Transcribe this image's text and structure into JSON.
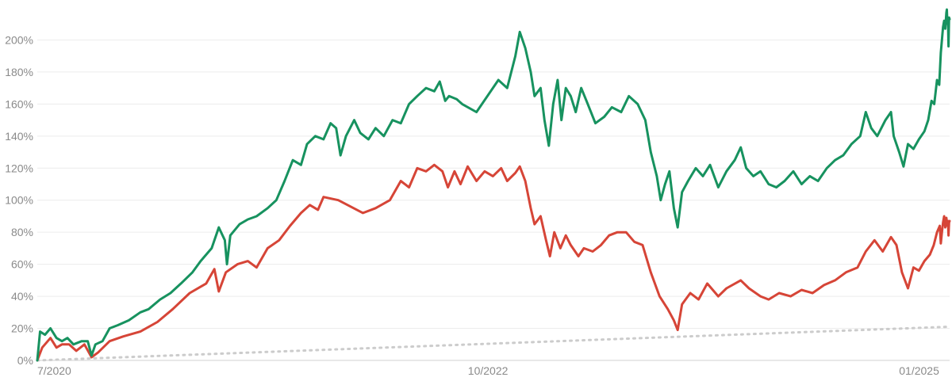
{
  "chart_data": {
    "type": "line",
    "title": "",
    "xlabel": "",
    "ylabel": "",
    "x_range": [
      "2020-07-01",
      "2025-01-20"
    ],
    "ylim": [
      0,
      220
    ],
    "grid": true,
    "y_ticks": [
      0,
      20,
      40,
      60,
      80,
      100,
      120,
      140,
      160,
      180,
      200
    ],
    "y_tick_labels": [
      "0%",
      "20%",
      "40%",
      "60%",
      "80%",
      "100%",
      "120%",
      "140%",
      "160%",
      "180%",
      "200%"
    ],
    "x_ticks": [
      {
        "date": "2020-07-01",
        "label": "7/2020"
      },
      {
        "date": "2022-10-01",
        "label": "10/2022"
      },
      {
        "date": "2025-01-01",
        "label": "01/2025"
      }
    ],
    "series": [
      {
        "color": "#17925f",
        "style": "solid",
        "points": [
          [
            "2020-07-01",
            0
          ],
          [
            "2020-07-06",
            18
          ],
          [
            "2020-07-15",
            16
          ],
          [
            "2020-07-25",
            20
          ],
          [
            "2020-08-05",
            14
          ],
          [
            "2020-08-15",
            12
          ],
          [
            "2020-08-25",
            14
          ],
          [
            "2020-09-05",
            10
          ],
          [
            "2020-09-20",
            12
          ],
          [
            "2020-10-01",
            12
          ],
          [
            "2020-10-08",
            3
          ],
          [
            "2020-10-15",
            10
          ],
          [
            "2020-10-28",
            12
          ],
          [
            "2020-11-10",
            20
          ],
          [
            "2020-11-25",
            22
          ],
          [
            "2020-12-15",
            25
          ],
          [
            "2021-01-05",
            30
          ],
          [
            "2021-01-20",
            32
          ],
          [
            "2021-02-10",
            38
          ],
          [
            "2021-03-01",
            42
          ],
          [
            "2021-03-20",
            48
          ],
          [
            "2021-04-10",
            55
          ],
          [
            "2021-04-25",
            62
          ],
          [
            "2021-05-15",
            70
          ],
          [
            "2021-05-28",
            83
          ],
          [
            "2021-06-08",
            75
          ],
          [
            "2021-06-12",
            60
          ],
          [
            "2021-06-18",
            78
          ],
          [
            "2021-07-05",
            85
          ],
          [
            "2021-07-20",
            88
          ],
          [
            "2021-08-05",
            90
          ],
          [
            "2021-08-25",
            95
          ],
          [
            "2021-09-10",
            100
          ],
          [
            "2021-09-25",
            112
          ],
          [
            "2021-10-10",
            125
          ],
          [
            "2021-10-25",
            122
          ],
          [
            "2021-11-05",
            135
          ],
          [
            "2021-11-20",
            140
          ],
          [
            "2021-12-05",
            138
          ],
          [
            "2021-12-18",
            148
          ],
          [
            "2021-12-28",
            145
          ],
          [
            "2022-01-05",
            128
          ],
          [
            "2022-01-15",
            140
          ],
          [
            "2022-01-30",
            150
          ],
          [
            "2022-02-10",
            142
          ],
          [
            "2022-02-25",
            138
          ],
          [
            "2022-03-10",
            145
          ],
          [
            "2022-03-25",
            140
          ],
          [
            "2022-04-10",
            150
          ],
          [
            "2022-04-25",
            148
          ],
          [
            "2022-05-10",
            160
          ],
          [
            "2022-05-25",
            165
          ],
          [
            "2022-06-10",
            170
          ],
          [
            "2022-06-25",
            168
          ],
          [
            "2022-07-05",
            174
          ],
          [
            "2022-07-15",
            162
          ],
          [
            "2022-07-22",
            165
          ],
          [
            "2022-08-05",
            163
          ],
          [
            "2022-08-15",
            160
          ],
          [
            "2022-09-10",
            155
          ],
          [
            "2022-10-20",
            175
          ],
          [
            "2022-11-05",
            170
          ],
          [
            "2022-11-20",
            190
          ],
          [
            "2022-11-28",
            205
          ],
          [
            "2022-12-08",
            195
          ],
          [
            "2022-12-18",
            180
          ],
          [
            "2022-12-25",
            165
          ],
          [
            "2023-01-05",
            170
          ],
          [
            "2023-01-12",
            150
          ],
          [
            "2023-01-20",
            134
          ],
          [
            "2023-01-28",
            160
          ],
          [
            "2023-02-05",
            175
          ],
          [
            "2023-02-12",
            150
          ],
          [
            "2023-02-20",
            170
          ],
          [
            "2023-03-01",
            165
          ],
          [
            "2023-03-10",
            155
          ],
          [
            "2023-03-20",
            170
          ],
          [
            "2023-04-01",
            160
          ],
          [
            "2023-04-15",
            148
          ],
          [
            "2023-05-01",
            152
          ],
          [
            "2023-05-15",
            158
          ],
          [
            "2023-06-01",
            155
          ],
          [
            "2023-06-15",
            165
          ],
          [
            "2023-07-01",
            160
          ],
          [
            "2023-07-15",
            150
          ],
          [
            "2023-07-25",
            130
          ],
          [
            "2023-08-05",
            115
          ],
          [
            "2023-08-12",
            100
          ],
          [
            "2023-08-20",
            110
          ],
          [
            "2023-08-28",
            118
          ],
          [
            "2023-09-05",
            95
          ],
          [
            "2023-09-12",
            83
          ],
          [
            "2023-09-20",
            105
          ],
          [
            "2023-10-01",
            112
          ],
          [
            "2023-10-15",
            120
          ],
          [
            "2023-10-28",
            115
          ],
          [
            "2023-11-10",
            122
          ],
          [
            "2023-11-25",
            108
          ],
          [
            "2023-12-10",
            118
          ],
          [
            "2023-12-25",
            125
          ],
          [
            "2024-01-05",
            133
          ],
          [
            "2024-01-15",
            120
          ],
          [
            "2024-01-28",
            115
          ],
          [
            "2024-02-10",
            118
          ],
          [
            "2024-02-25",
            110
          ],
          [
            "2024-03-10",
            108
          ],
          [
            "2024-03-25",
            112
          ],
          [
            "2024-04-10",
            118
          ],
          [
            "2024-04-25",
            110
          ],
          [
            "2024-05-10",
            115
          ],
          [
            "2024-05-25",
            112
          ],
          [
            "2024-06-10",
            120
          ],
          [
            "2024-06-25",
            125
          ],
          [
            "2024-07-10",
            128
          ],
          [
            "2024-07-25",
            135
          ],
          [
            "2024-08-10",
            140
          ],
          [
            "2024-08-20",
            155
          ],
          [
            "2024-08-30",
            145
          ],
          [
            "2024-09-10",
            140
          ],
          [
            "2024-09-25",
            150
          ],
          [
            "2024-10-05",
            155
          ],
          [
            "2024-10-10",
            140
          ],
          [
            "2024-10-20",
            130
          ],
          [
            "2024-10-28",
            121
          ],
          [
            "2024-11-05",
            135
          ],
          [
            "2024-11-15",
            132
          ],
          [
            "2024-11-25",
            138
          ],
          [
            "2024-12-05",
            143
          ],
          [
            "2024-12-12",
            150
          ],
          [
            "2024-12-18",
            162
          ],
          [
            "2024-12-23",
            160
          ],
          [
            "2024-12-28",
            175
          ],
          [
            "2025-01-01",
            172
          ],
          [
            "2025-01-04",
            192
          ],
          [
            "2025-01-06",
            200
          ],
          [
            "2025-01-08",
            208
          ],
          [
            "2025-01-10",
            212
          ],
          [
            "2025-01-12",
            207
          ],
          [
            "2025-01-14",
            217
          ],
          [
            "2025-01-15",
            219
          ],
          [
            "2025-01-16",
            210
          ],
          [
            "2025-01-17",
            213
          ],
          [
            "2025-01-18",
            196
          ],
          [
            "2025-01-19",
            214
          ],
          [
            "2025-01-20",
            213
          ]
        ]
      },
      {
        "color": "#d64537",
        "style": "solid",
        "points": [
          [
            "2020-07-01",
            0
          ],
          [
            "2020-07-10",
            8
          ],
          [
            "2020-07-25",
            14
          ],
          [
            "2020-08-05",
            8
          ],
          [
            "2020-08-15",
            10
          ],
          [
            "2020-08-28",
            10
          ],
          [
            "2020-09-10",
            6
          ],
          [
            "2020-09-25",
            10
          ],
          [
            "2020-10-08",
            2
          ],
          [
            "2020-10-20",
            5
          ],
          [
            "2020-11-10",
            12
          ],
          [
            "2020-12-05",
            15
          ],
          [
            "2021-01-05",
            18
          ],
          [
            "2021-02-05",
            24
          ],
          [
            "2021-03-05",
            32
          ],
          [
            "2021-04-05",
            42
          ],
          [
            "2021-05-05",
            48
          ],
          [
            "2021-05-20",
            57
          ],
          [
            "2021-05-28",
            43
          ],
          [
            "2021-06-10",
            55
          ],
          [
            "2021-07-01",
            60
          ],
          [
            "2021-07-20",
            62
          ],
          [
            "2021-08-05",
            58
          ],
          [
            "2021-08-25",
            70
          ],
          [
            "2021-09-15",
            75
          ],
          [
            "2021-10-05",
            84
          ],
          [
            "2021-10-25",
            92
          ],
          [
            "2021-11-10",
            97
          ],
          [
            "2021-11-25",
            94
          ],
          [
            "2021-12-05",
            102
          ],
          [
            "2022-01-01",
            100
          ],
          [
            "2022-02-15",
            92
          ],
          [
            "2022-03-10",
            95
          ],
          [
            "2022-04-05",
            100
          ],
          [
            "2022-04-25",
            112
          ],
          [
            "2022-05-10",
            108
          ],
          [
            "2022-05-25",
            120
          ],
          [
            "2022-06-10",
            118
          ],
          [
            "2022-06-25",
            122
          ],
          [
            "2022-07-10",
            118
          ],
          [
            "2022-07-20",
            108
          ],
          [
            "2022-08-01",
            118
          ],
          [
            "2022-08-12",
            110
          ],
          [
            "2022-08-25",
            121
          ],
          [
            "2022-09-10",
            112
          ],
          [
            "2022-09-25",
            118
          ],
          [
            "2022-10-10",
            115
          ],
          [
            "2022-10-25",
            120
          ],
          [
            "2022-11-05",
            112
          ],
          [
            "2022-11-20",
            117
          ],
          [
            "2022-11-28",
            121
          ],
          [
            "2022-12-08",
            112
          ],
          [
            "2022-12-18",
            95
          ],
          [
            "2022-12-25",
            85
          ],
          [
            "2023-01-05",
            90
          ],
          [
            "2023-01-15",
            75
          ],
          [
            "2023-01-22",
            65
          ],
          [
            "2023-01-30",
            80
          ],
          [
            "2023-02-10",
            70
          ],
          [
            "2023-02-20",
            78
          ],
          [
            "2023-03-01",
            72
          ],
          [
            "2023-03-15",
            65
          ],
          [
            "2023-03-25",
            70
          ],
          [
            "2023-04-10",
            68
          ],
          [
            "2023-04-25",
            72
          ],
          [
            "2023-05-10",
            78
          ],
          [
            "2023-05-25",
            80
          ],
          [
            "2023-06-10",
            80
          ],
          [
            "2023-06-25",
            74
          ],
          [
            "2023-07-10",
            72
          ],
          [
            "2023-07-25",
            55
          ],
          [
            "2023-08-10",
            40
          ],
          [
            "2023-08-25",
            32
          ],
          [
            "2023-09-05",
            25
          ],
          [
            "2023-09-12",
            19
          ],
          [
            "2023-09-20",
            35
          ],
          [
            "2023-10-05",
            42
          ],
          [
            "2023-10-20",
            38
          ],
          [
            "2023-11-05",
            48
          ],
          [
            "2023-11-25",
            40
          ],
          [
            "2023-12-10",
            45
          ],
          [
            "2024-01-05",
            50
          ],
          [
            "2024-01-20",
            45
          ],
          [
            "2024-02-10",
            40
          ],
          [
            "2024-02-25",
            38
          ],
          [
            "2024-03-15",
            42
          ],
          [
            "2024-04-05",
            40
          ],
          [
            "2024-04-25",
            44
          ],
          [
            "2024-05-15",
            42
          ],
          [
            "2024-06-05",
            47
          ],
          [
            "2024-06-25",
            50
          ],
          [
            "2024-07-15",
            55
          ],
          [
            "2024-08-05",
            58
          ],
          [
            "2024-08-20",
            68
          ],
          [
            "2024-09-05",
            75
          ],
          [
            "2024-09-20",
            68
          ],
          [
            "2024-10-05",
            77
          ],
          [
            "2024-10-15",
            72
          ],
          [
            "2024-10-25",
            55
          ],
          [
            "2024-11-05",
            45
          ],
          [
            "2024-11-15",
            58
          ],
          [
            "2024-11-25",
            56
          ],
          [
            "2024-12-05",
            62
          ],
          [
            "2024-12-15",
            66
          ],
          [
            "2024-12-22",
            72
          ],
          [
            "2024-12-28",
            80
          ],
          [
            "2025-01-02",
            84
          ],
          [
            "2025-01-04",
            73
          ],
          [
            "2025-01-06",
            80
          ],
          [
            "2025-01-08",
            86
          ],
          [
            "2025-01-10",
            90
          ],
          [
            "2025-01-12",
            83
          ],
          [
            "2025-01-14",
            89
          ],
          [
            "2025-01-15",
            86
          ],
          [
            "2025-01-16",
            84
          ],
          [
            "2025-01-17",
            87
          ],
          [
            "2025-01-18",
            78
          ],
          [
            "2025-01-19",
            86
          ],
          [
            "2025-01-20",
            87
          ]
        ]
      },
      {
        "color": "#cccccc",
        "style": "dotted",
        "points": [
          [
            "2020-07-01",
            0
          ],
          [
            "2025-01-20",
            21
          ]
        ]
      }
    ]
  }
}
